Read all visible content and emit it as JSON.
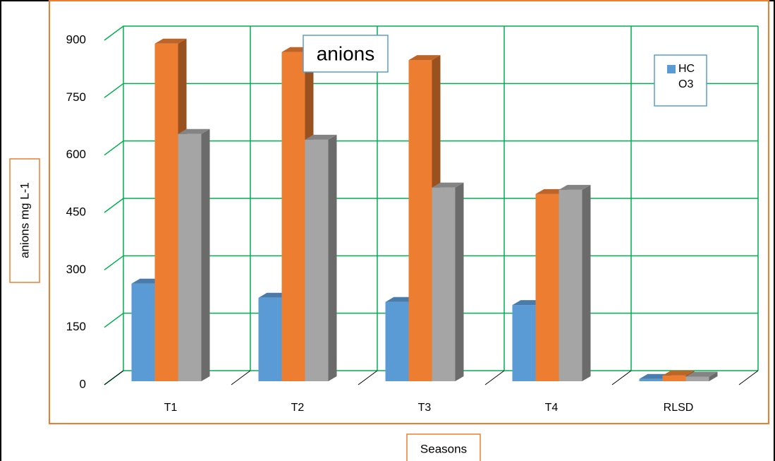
{
  "chart_data": {
    "type": "bar",
    "title": "anions",
    "x_label": "Seasons",
    "y_label": "anions  mg L-1",
    "categories": [
      "T1",
      "T2",
      "T3",
      "T4",
      "RLSD"
    ],
    "series": [
      {
        "name": "HC",
        "color": "#5b9bd5",
        "values": [
          255,
          218,
          207,
          199,
          6
        ]
      },
      {
        "name": "O3",
        "color": "#ed7d31",
        "values": [
          882,
          860,
          839,
          489,
          15
        ]
      },
      {
        "color": "#a5a5a5",
        "values": [
          646,
          631,
          506,
          500,
          12
        ]
      }
    ],
    "ylim": [
      0,
      900
    ],
    "yticks": [
      0,
      150,
      300,
      450,
      600,
      750,
      900
    ],
    "grid": true
  }
}
